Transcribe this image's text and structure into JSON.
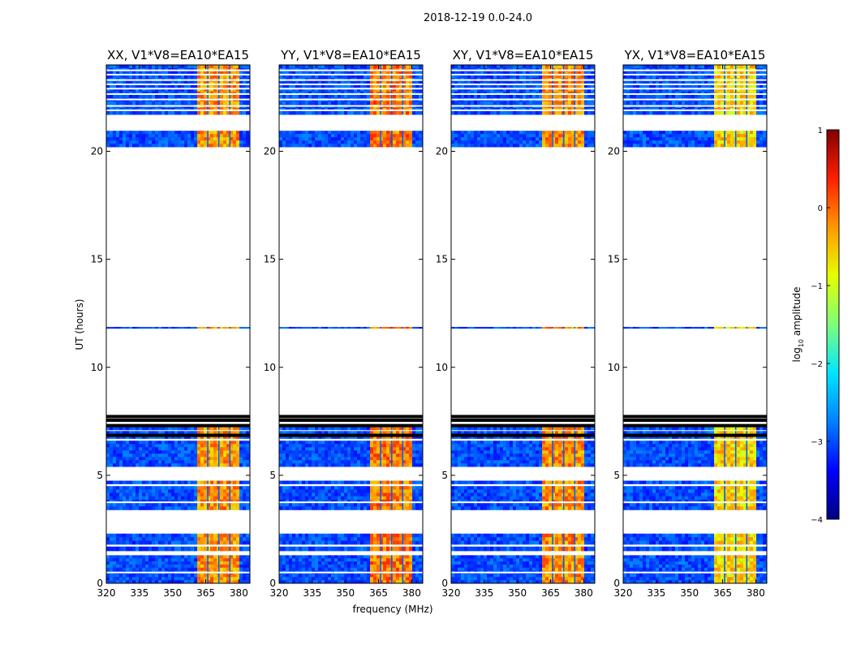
{
  "chart_data": {
    "type": "heatmap",
    "suptitle": "2018-12-19 0.0-24.0",
    "xlabel": "frequency (MHz)",
    "ylabel": "UT (hours)",
    "xlim": [
      320,
      385
    ],
    "ylim": [
      0,
      24
    ],
    "xticks": [
      320,
      335,
      350,
      365,
      380
    ],
    "yticks": [
      0,
      5,
      10,
      15,
      20
    ],
    "panels": [
      {
        "title": "XX, V1*V8=EA10*EA15",
        "band_level": 0.75
      },
      {
        "title": "YY, V1*V8=EA10*EA15",
        "band_level": 0.78
      },
      {
        "title": "XY, V1*V8=EA10*EA15",
        "band_level": 0.76
      },
      {
        "title": "YX, V1*V8=EA10*EA15",
        "band_level": 0.68
      }
    ],
    "background_level": 0.2,
    "strong_band_MHz": [
      361,
      380
    ],
    "data_time_ranges_hours": [
      [
        0.0,
        1.3
      ],
      [
        1.5,
        1.7
      ],
      [
        1.8,
        2.3
      ],
      [
        3.4,
        4.5
      ],
      [
        4.6,
        4.75
      ],
      [
        5.4,
        6.6
      ],
      [
        6.7,
        7.05
      ],
      [
        7.1,
        7.25
      ],
      [
        11.8,
        11.87
      ],
      [
        20.2,
        20.95
      ],
      [
        21.7,
        24.0
      ]
    ],
    "blank_lines_hours": [
      0.5,
      3.75,
      21.9,
      22.1,
      22.4,
      22.65,
      22.9,
      23.1,
      23.3,
      23.55,
      23.75
    ],
    "black_lines_hours": [
      6.85,
      7.3,
      7.55,
      7.72
    ],
    "vertical_lines_MHz": [
      366,
      371,
      376
    ],
    "colorbar": {
      "label_main": "log",
      "label_sub": "10",
      "label_rest": " amplitude",
      "min": -4,
      "max": 1,
      "ticks": [
        -4,
        -3,
        -2,
        -1,
        0,
        1
      ],
      "tick_labels": [
        "−4",
        "−3",
        "−2",
        "−1",
        "0",
        "1"
      ],
      "stops": [
        "#000080",
        "#0000ff",
        "#0080ff",
        "#00e5ff",
        "#7dff7a",
        "#e5ff00",
        "#ff9800",
        "#ff1e00",
        "#800000"
      ]
    }
  }
}
